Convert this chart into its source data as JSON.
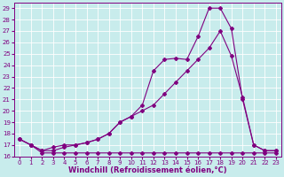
{
  "xlabel": "Windchill (Refroidissement éolien,°C)",
  "bg_color": "#c8ecec",
  "line_color": "#800080",
  "grid_color": "#ffffff",
  "xlim": [
    -0.5,
    23.5
  ],
  "ylim": [
    16,
    29.5
  ],
  "yticks": [
    16,
    17,
    18,
    19,
    20,
    21,
    22,
    23,
    24,
    25,
    26,
    27,
    28,
    29
  ],
  "xticks": [
    0,
    1,
    2,
    3,
    4,
    5,
    6,
    7,
    8,
    9,
    10,
    11,
    12,
    13,
    14,
    15,
    16,
    17,
    18,
    19,
    20,
    21,
    22,
    23
  ],
  "line1_x": [
    0,
    1,
    2,
    3,
    4,
    5,
    6,
    7,
    8,
    9,
    10,
    11,
    12,
    13,
    14,
    15,
    16,
    17,
    18,
    19,
    20,
    21,
    22,
    23
  ],
  "line1_y": [
    17.5,
    17.0,
    16.5,
    16.8,
    17.0,
    17.0,
    17.2,
    17.5,
    18.0,
    19.0,
    19.5,
    20.5,
    23.5,
    24.5,
    24.6,
    24.5,
    26.5,
    29.0,
    29.0,
    27.2,
    21.0,
    17.0,
    16.5,
    16.5
  ],
  "line2_x": [
    0,
    1,
    2,
    3,
    4,
    5,
    6,
    7,
    8,
    9,
    10,
    11,
    12,
    13,
    14,
    15,
    16,
    17,
    18,
    19,
    20,
    21,
    22,
    23
  ],
  "line2_y": [
    17.5,
    17.0,
    16.5,
    16.5,
    16.8,
    17.0,
    17.2,
    17.5,
    18.0,
    19.0,
    19.5,
    20.0,
    20.5,
    21.5,
    22.5,
    23.5,
    24.5,
    25.5,
    27.0,
    24.8,
    21.2,
    17.0,
    16.5,
    16.5
  ],
  "line3_x": [
    0,
    1,
    2,
    3,
    4,
    5,
    6,
    7,
    8,
    9,
    10,
    11,
    12,
    13,
    14,
    15,
    16,
    17,
    18,
    19,
    20,
    21,
    22,
    23
  ],
  "line3_y": [
    17.5,
    17.0,
    16.3,
    16.3,
    16.3,
    16.3,
    16.3,
    16.3,
    16.3,
    16.3,
    16.3,
    16.3,
    16.3,
    16.3,
    16.3,
    16.3,
    16.3,
    16.3,
    16.3,
    16.3,
    16.3,
    16.3,
    16.3,
    16.3
  ],
  "marker": "D",
  "markersize": 2.0,
  "linewidth": 0.8,
  "tick_fontsize": 5.0,
  "label_fontsize": 6.0
}
